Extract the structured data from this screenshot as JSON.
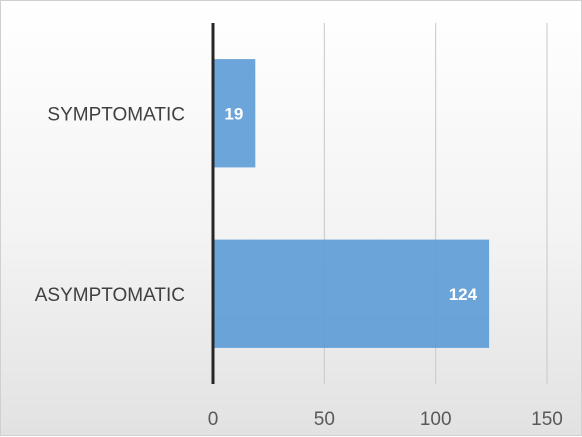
{
  "chart_data": {
    "type": "bar",
    "orientation": "horizontal",
    "categories": [
      "SYMPTOMATIC",
      "ASYMPTOMATIC"
    ],
    "values": [
      19,
      124
    ],
    "data_labels": [
      "19",
      "124"
    ],
    "xlim": [
      0,
      150
    ],
    "xticks": [
      0,
      50,
      100,
      150
    ],
    "xtick_labels": [
      "0",
      "50",
      "100",
      "150"
    ],
    "grid": true,
    "legend": "none",
    "bar_color": "#5B9BD5"
  }
}
